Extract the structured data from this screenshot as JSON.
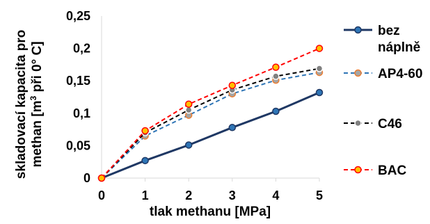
{
  "chart_data": {
    "type": "line",
    "title": "",
    "xlabel": "tlak methanu [MPa]",
    "ylabel_line1": "skladovací kapacita pro",
    "ylabel_line2_prefix": "methan [m",
    "ylabel_line2_sup": "3",
    "ylabel_line2_suffix": " při 0° C]",
    "x": [
      0,
      1,
      2,
      3,
      4,
      5
    ],
    "xlim": [
      0,
      5
    ],
    "ylim": [
      0,
      0.25
    ],
    "x_tick_labels": [
      "0",
      "1",
      "2",
      "3",
      "4",
      "5"
    ],
    "y_tick_values": [
      0,
      0.05,
      0.1,
      0.15,
      0.2,
      0.25
    ],
    "y_tick_labels": [
      "0",
      "0,05",
      "0,1",
      "0,15",
      "0,2",
      "0,25"
    ],
    "grid": false,
    "legend_position": "right",
    "series": [
      {
        "name_lines": [
          "bez",
          "náplně"
        ],
        "values": [
          0,
          0.027,
          0.051,
          0.078,
          0.103,
          0.132
        ],
        "line_color": "#1f3864",
        "marker_color": "#2e75b6",
        "marker_stroke": "#1f3864",
        "dash": "solid",
        "line_width": 3
      },
      {
        "name_lines": [
          "AP4-60"
        ],
        "values": [
          0,
          0.065,
          0.097,
          0.13,
          0.151,
          0.163
        ],
        "line_color": "#2e75b6",
        "marker_color": "#a5a5a5",
        "marker_stroke": "#ed7d31",
        "dash": "dashed",
        "line_width": 2
      },
      {
        "name_lines": [
          "C46"
        ],
        "values": [
          0,
          0.07,
          0.105,
          0.136,
          0.157,
          0.169
        ],
        "line_color": "#000000",
        "marker_color": "#808080",
        "marker_stroke": "#ffffff",
        "dash": "dashed",
        "line_width": 2
      },
      {
        "name_lines": [
          "BAC"
        ],
        "values": [
          0,
          0.073,
          0.114,
          0.143,
          0.171,
          0.2
        ],
        "line_color": "#ff0000",
        "marker_color": "#ffc000",
        "marker_stroke": "#ff0000",
        "dash": "dashed",
        "line_width": 2
      }
    ]
  }
}
